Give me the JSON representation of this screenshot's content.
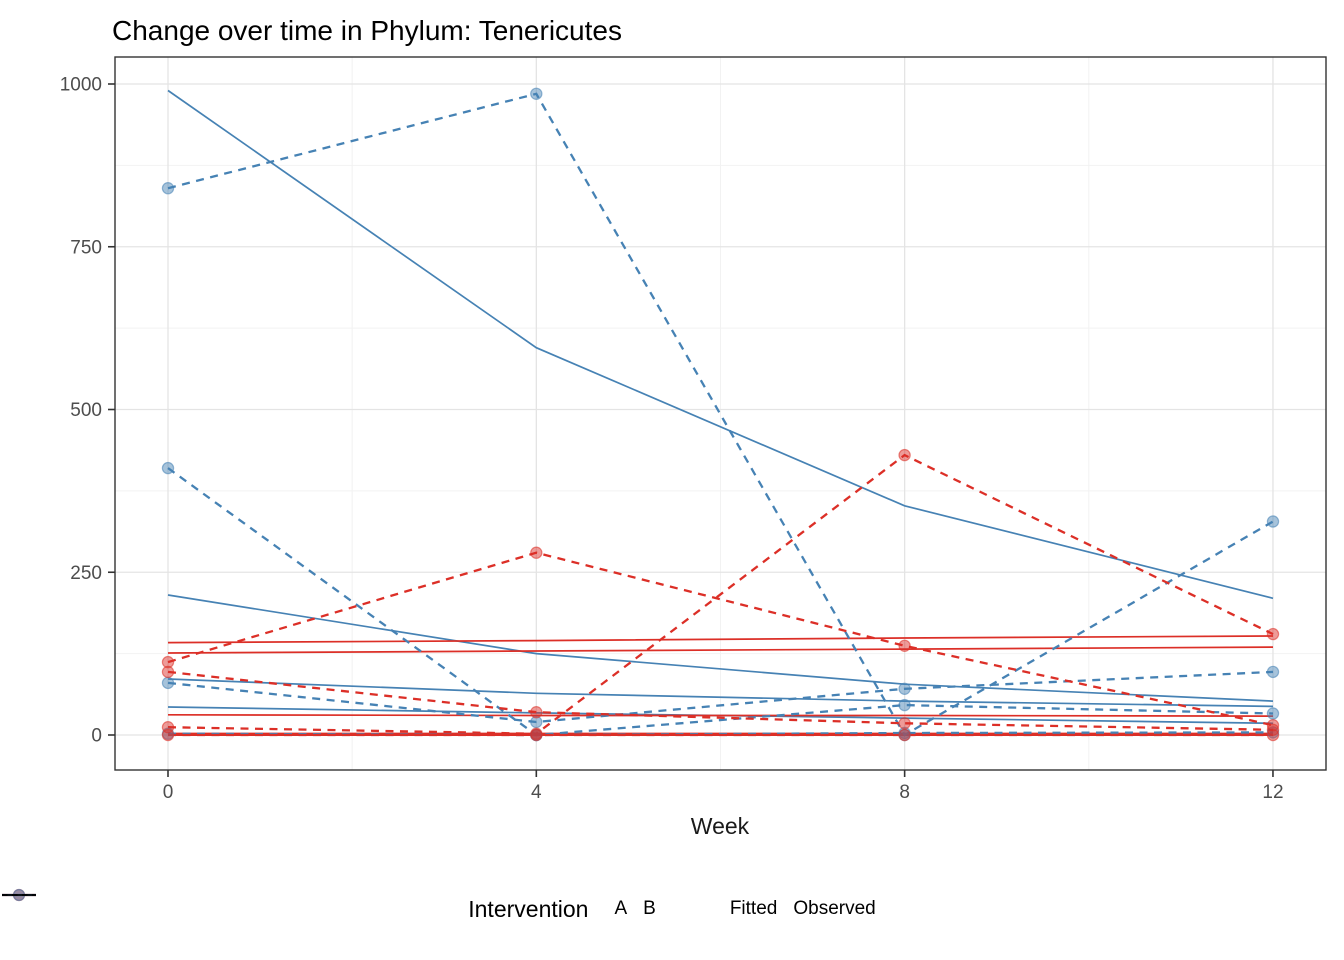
{
  "title": "Change over time in Phylum: Tenericutes",
  "axes": {
    "x": {
      "label": "Week",
      "ticks": [
        "0",
        "4",
        "8",
        "12"
      ]
    },
    "y": {
      "ticks": [
        "0",
        "250",
        "500",
        "750",
        "1000"
      ]
    }
  },
  "legend": {
    "title": "Intervention",
    "groups": [
      {
        "label": "A",
        "color": "#dc2f27"
      },
      {
        "label": "B",
        "color": "#4682b4"
      }
    ],
    "linetypes": [
      {
        "label": "Fitted",
        "style": "solid"
      },
      {
        "label": "Observed",
        "style": "dashed"
      }
    ]
  },
  "colors": {
    "A": "#dc2f27",
    "B": "#4682b4",
    "grid_major": "#e4e4e4",
    "grid_minor": "#f2f2f2",
    "axis_text": "#4d4d4d",
    "axis_title": "#1a1a1a",
    "panel_border": "#333333"
  },
  "chart_data": {
    "type": "line",
    "title": "Change over time in Phylum: Tenericutes",
    "xlabel": "Week",
    "ylabel": "",
    "x": [
      0,
      4,
      8,
      12
    ],
    "x_ticks": [
      0,
      4,
      8,
      12
    ],
    "y_ticks": [
      0,
      250,
      500,
      750,
      1000
    ],
    "xlim": [
      -0.58,
      12.58
    ],
    "ylim": [
      -54,
      1041
    ],
    "grid": "major and minor gridlines, white panel, dark border",
    "legend_position": "bottom",
    "series": [
      {
        "name": "B-fitted-1",
        "group": "B",
        "kind": "fitted",
        "values": [
          990,
          595,
          352,
          210
        ]
      },
      {
        "name": "B-fitted-2",
        "group": "B",
        "kind": "fitted",
        "values": [
          215,
          125,
          78,
          52
        ]
      },
      {
        "name": "B-fitted-3",
        "group": "B",
        "kind": "fitted",
        "values": [
          86,
          64,
          52,
          44
        ]
      },
      {
        "name": "B-fitted-4",
        "group": "B",
        "kind": "fitted",
        "values": [
          43,
          34,
          26,
          18
        ]
      },
      {
        "name": "A-fitted-1",
        "group": "A",
        "kind": "fitted",
        "values": [
          142,
          145,
          149,
          152
        ]
      },
      {
        "name": "A-fitted-2",
        "group": "A",
        "kind": "fitted",
        "values": [
          126,
          129,
          132,
          135
        ]
      },
      {
        "name": "A-fitted-3",
        "group": "A",
        "kind": "fitted",
        "values": [
          31,
          30,
          30,
          29
        ]
      },
      {
        "name": "A-fitted-4",
        "group": "A",
        "kind": "fitted",
        "values": [
          1,
          1,
          1,
          1
        ],
        "thick": true
      },
      {
        "name": "B-observed-1",
        "group": "B",
        "kind": "observed",
        "values": [
          840,
          985,
          0,
          328
        ]
      },
      {
        "name": "B-observed-2",
        "group": "B",
        "kind": "observed",
        "values": [
          410,
          0,
          46,
          33
        ]
      },
      {
        "name": "B-observed-3",
        "group": "B",
        "kind": "observed",
        "values": [
          80,
          20,
          71,
          97
        ]
      },
      {
        "name": "B-observed-4",
        "group": "B",
        "kind": "observed",
        "values": [
          2,
          0,
          3,
          4
        ]
      },
      {
        "name": "A-observed-1",
        "group": "A",
        "kind": "observed",
        "values": [
          112,
          280,
          137,
          15
        ]
      },
      {
        "name": "A-observed-2",
        "group": "A",
        "kind": "observed",
        "values": [
          97,
          35,
          18,
          8
        ]
      },
      {
        "name": "A-observed-3",
        "group": "A",
        "kind": "observed",
        "values": [
          12,
          2,
          430,
          155
        ]
      },
      {
        "name": "A-observed-4",
        "group": "A",
        "kind": "observed",
        "values": [
          0,
          0,
          0,
          0
        ]
      }
    ]
  }
}
